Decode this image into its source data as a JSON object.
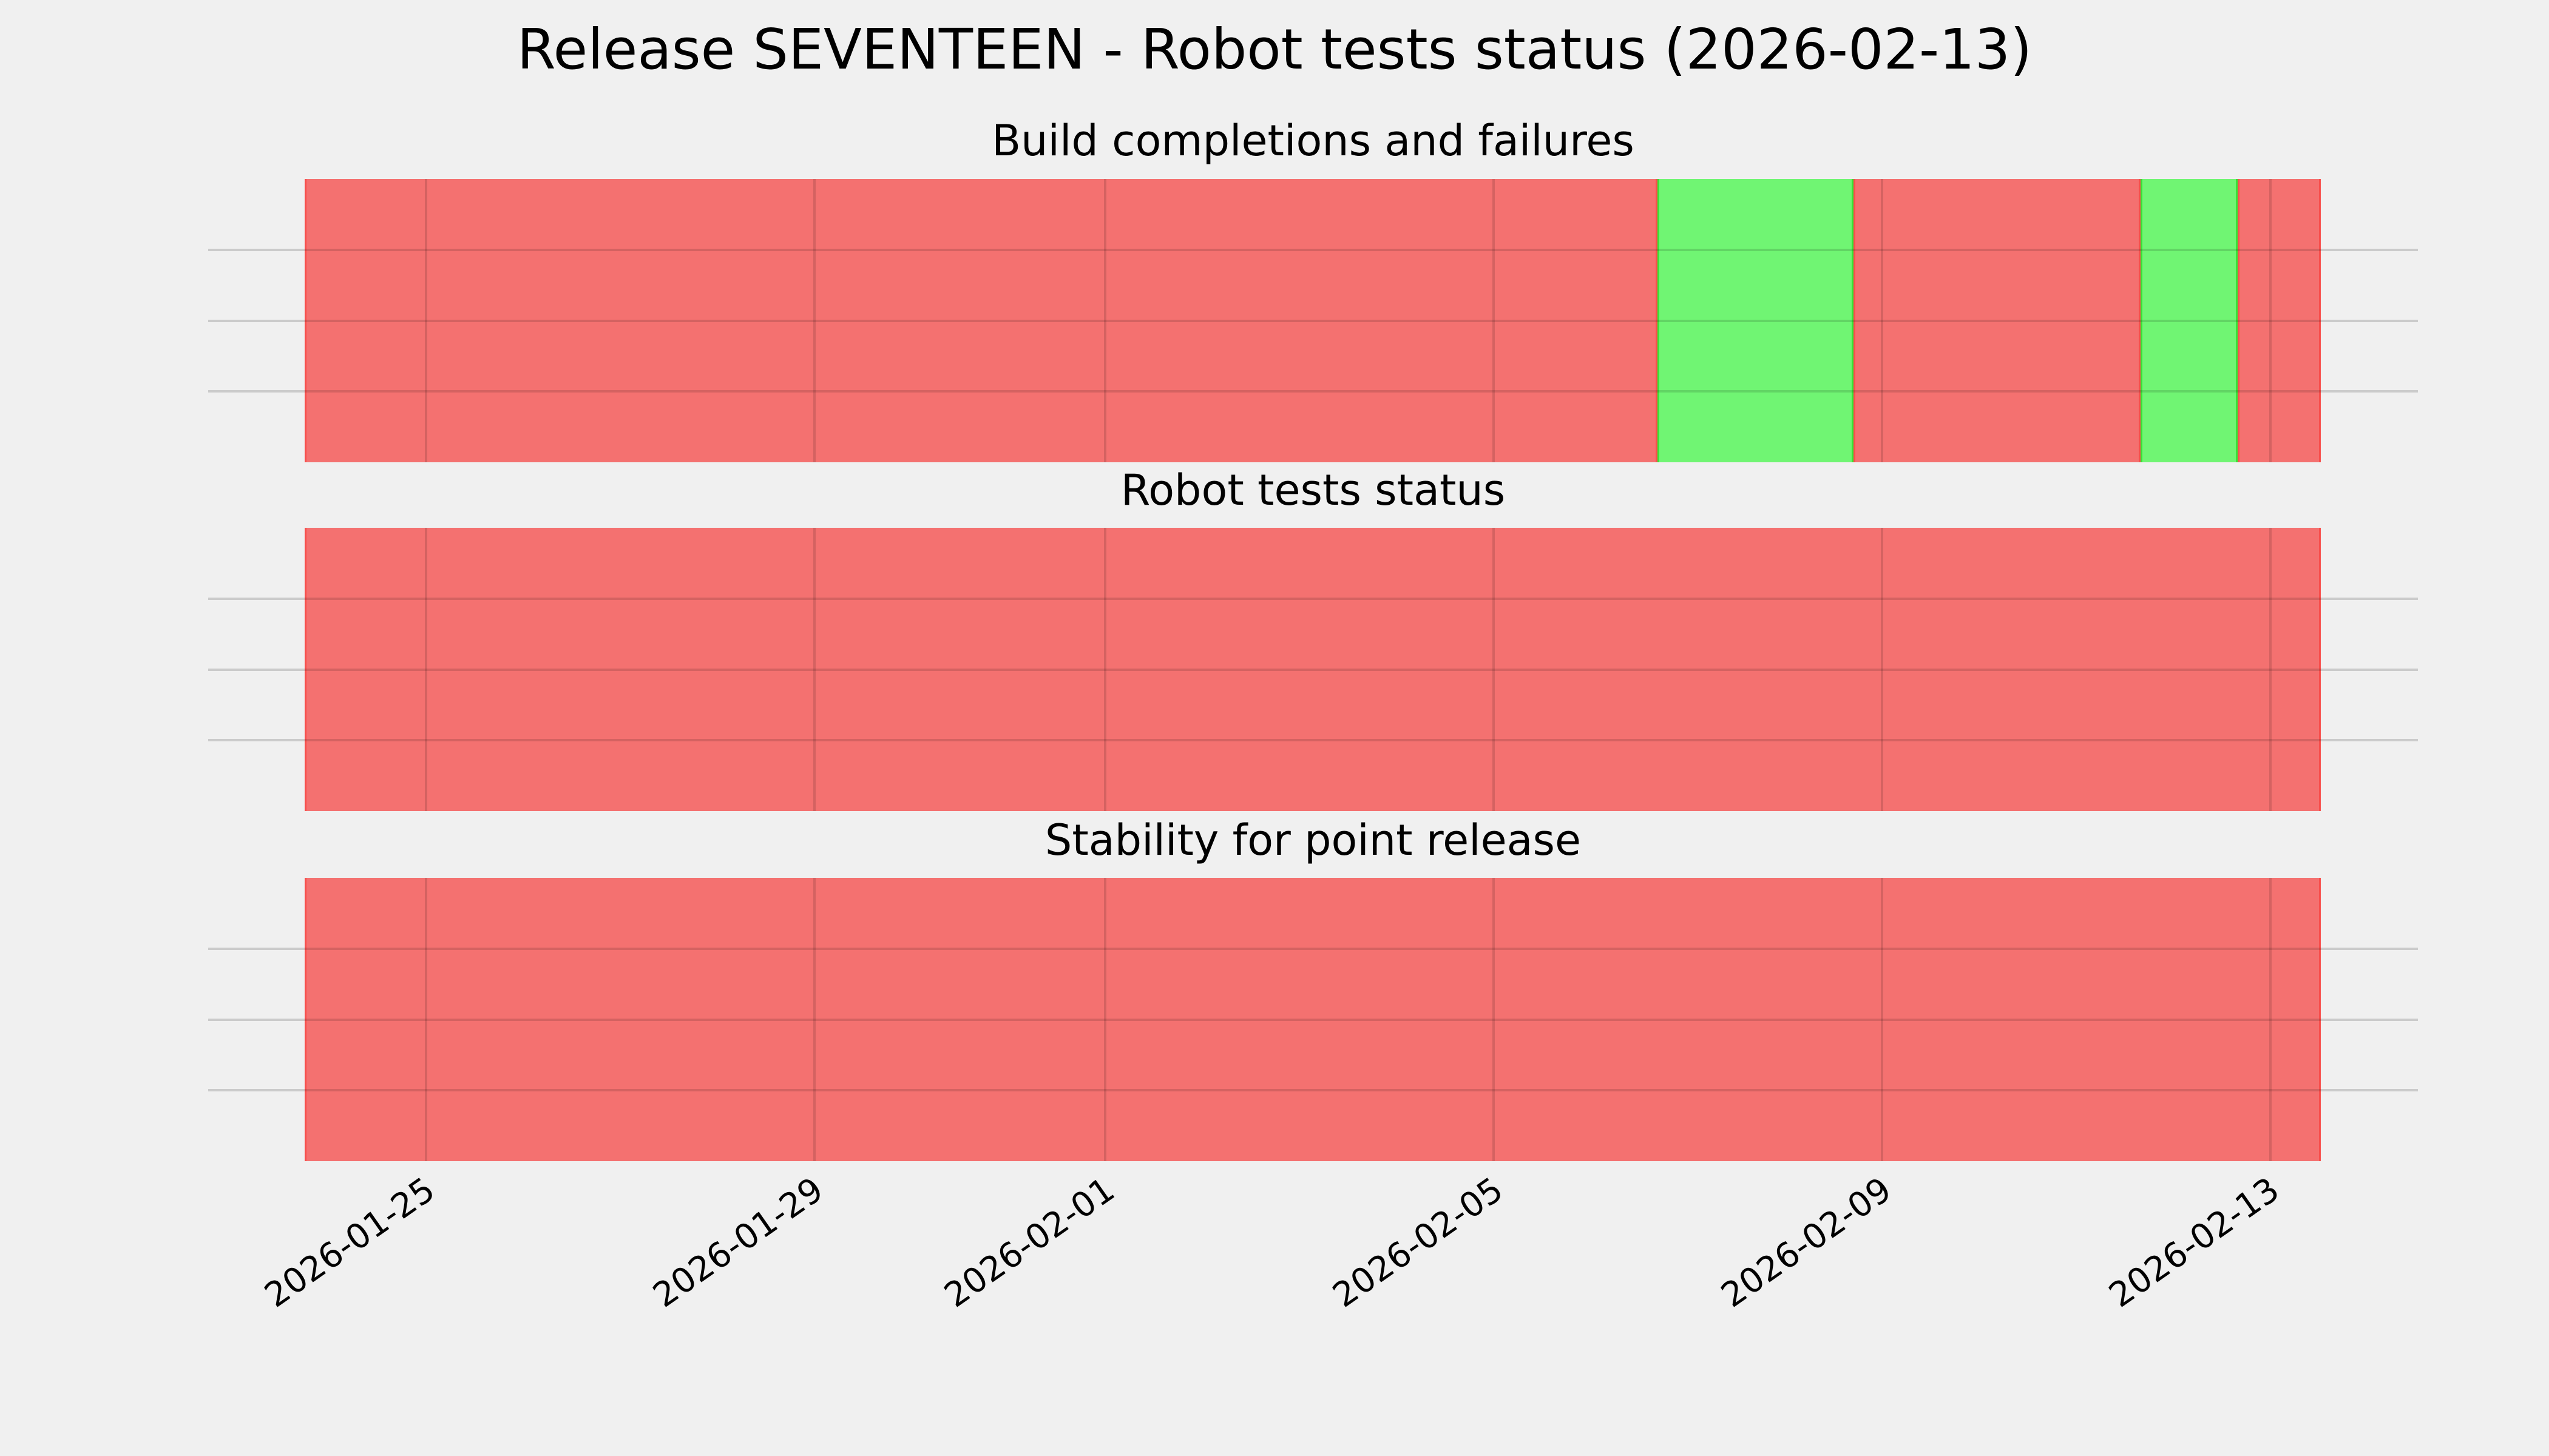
{
  "title": "Release SEVENTEEN - Robot tests status (2026-02-13)",
  "colors": {
    "background": "#f0f0f0",
    "failure_fill": "#f47170",
    "failure_edge": "#f84f4c",
    "success_fill": "#70f573",
    "success_edge": "#35e437",
    "grid_outside": "#cbcbcb",
    "grid_over_bars": "rgba(0,0,0,0.13)",
    "text": "#000000"
  },
  "x_axis": {
    "range_start": "2026-01-23T18:00:00",
    "range_end": "2026-02-13T12:30:00",
    "ticks": [
      {
        "label": "2026-01-25",
        "date": "2026-01-25T00:00:00"
      },
      {
        "label": "2026-01-29",
        "date": "2026-01-29T00:00:00"
      },
      {
        "label": "2026-02-01",
        "date": "2026-02-01T00:00:00"
      },
      {
        "label": "2026-02-05",
        "date": "2026-02-05T00:00:00"
      },
      {
        "label": "2026-02-09",
        "date": "2026-02-09T00:00:00"
      },
      {
        "label": "2026-02-13",
        "date": "2026-02-13T00:00:00"
      }
    ],
    "tick_label_rotation_deg": 35,
    "tick_labels_shown_under_last_panel_only": true
  },
  "chart_data": [
    {
      "type": "bar",
      "subtype": "status-timeline-strip",
      "title": "Build completions and failures",
      "xlim": [
        "2026-01-23T18:00:00",
        "2026-02-13T12:30:00"
      ],
      "y_gridlines_unlabeled": 3,
      "grid": true,
      "legend": false,
      "segments": [
        {
          "status": "failure",
          "start": "2026-01-23T18:00:00",
          "end": "2026-02-06T16:30:00"
        },
        {
          "status": "success",
          "start": "2026-02-06T16:30:00",
          "end": "2026-02-08T17:00:00"
        },
        {
          "status": "failure",
          "start": "2026-02-08T17:00:00",
          "end": "2026-02-11T16:00:00"
        },
        {
          "status": "success",
          "start": "2026-02-11T16:00:00",
          "end": "2026-02-12T16:00:00"
        },
        {
          "status": "failure",
          "start": "2026-02-12T16:00:00",
          "end": "2026-02-13T12:30:00"
        }
      ]
    },
    {
      "type": "bar",
      "subtype": "status-timeline-strip",
      "title": "Robot tests status",
      "xlim": [
        "2026-01-23T18:00:00",
        "2026-02-13T12:30:00"
      ],
      "y_gridlines_unlabeled": 3,
      "grid": true,
      "legend": false,
      "segments": [
        {
          "status": "failure",
          "start": "2026-01-23T18:00:00",
          "end": "2026-02-13T12:30:00"
        }
      ]
    },
    {
      "type": "bar",
      "subtype": "status-timeline-strip",
      "title": "Stability for point release",
      "xlim": [
        "2026-01-23T18:00:00",
        "2026-02-13T12:30:00"
      ],
      "y_gridlines_unlabeled": 3,
      "grid": true,
      "legend": false,
      "segments": [
        {
          "status": "failure",
          "start": "2026-01-23T18:00:00",
          "end": "2026-02-13T12:30:00"
        }
      ]
    }
  ]
}
